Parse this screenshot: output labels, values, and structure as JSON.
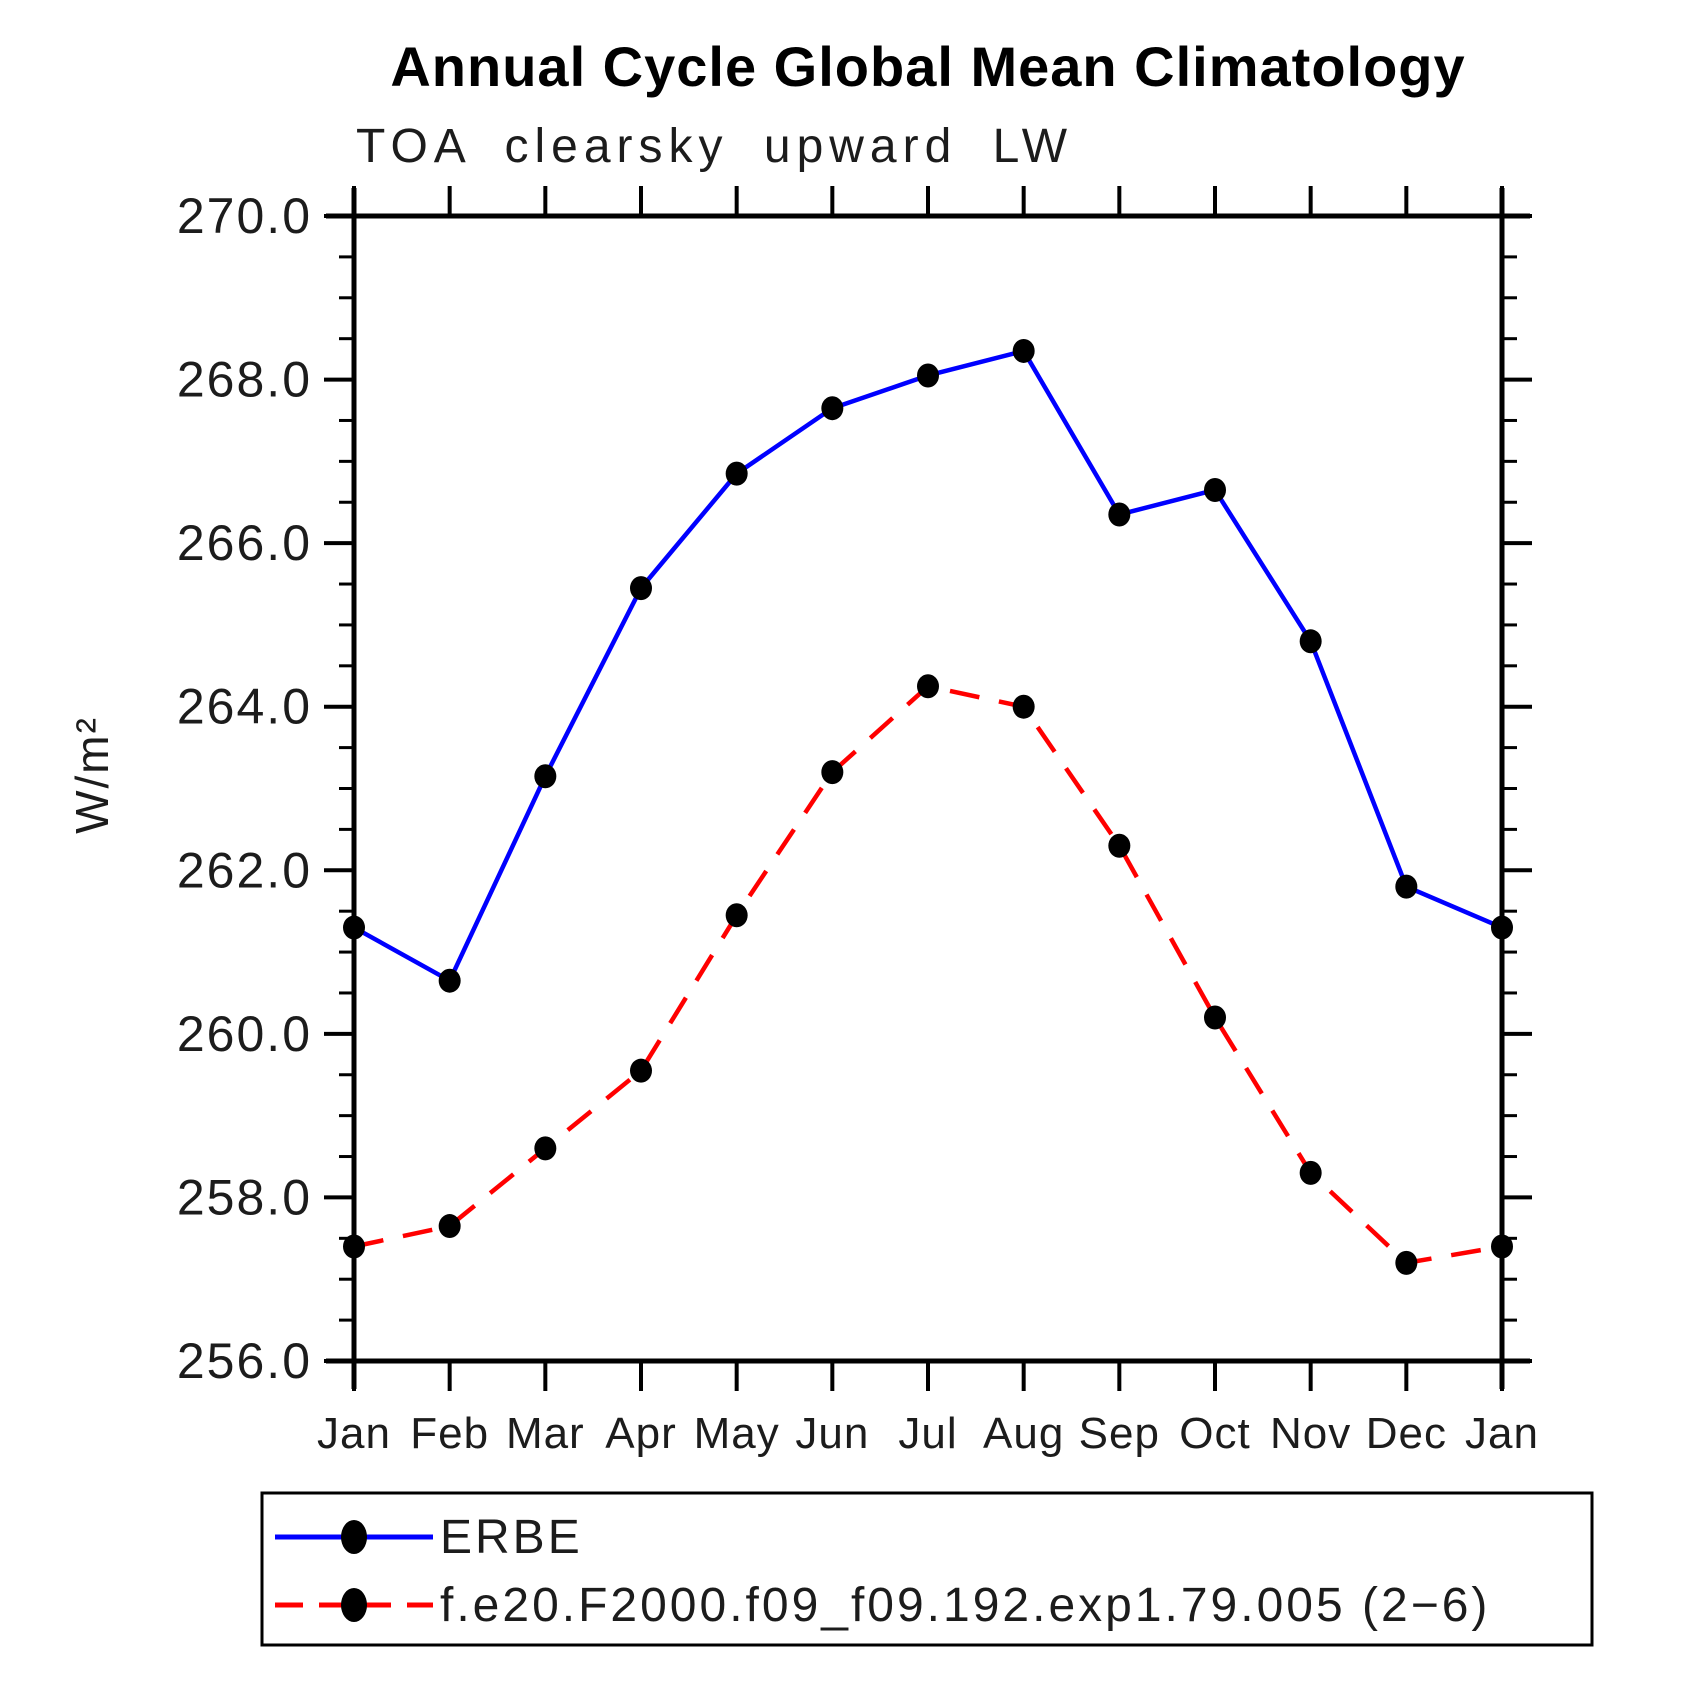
{
  "title": "Annual Cycle Global Mean Climatology",
  "subtitle": "TOA clearsky upward LW",
  "ylabel": "W/m²",
  "colors": {
    "erbe_line": "#0000ff",
    "model_line": "#ff0000",
    "marker": "#000000",
    "axis": "#000000",
    "text": "#1c1c1c",
    "background": "#ffffff"
  },
  "chart_data": {
    "type": "line",
    "title": "Annual Cycle Global Mean Climatology",
    "subtitle": "TOA clearsky upward LW",
    "xlabel": "",
    "ylabel": "W/m²",
    "x_categories": [
      "Jan",
      "Feb",
      "Mar",
      "Apr",
      "May",
      "Jun",
      "Jul",
      "Aug",
      "Sep",
      "Oct",
      "Nov",
      "Dec",
      "Jan"
    ],
    "ylim": [
      256.0,
      270.0
    ],
    "ytick_interval": 2.0,
    "ytick_minor_interval": 0.5,
    "ytick_values": [
      256.0,
      258.0,
      260.0,
      262.0,
      264.0,
      266.0,
      268.0,
      270.0
    ],
    "ytick_labels": [
      "256.0",
      "258.0",
      "260.0",
      "262.0",
      "264.0",
      "266.0",
      "268.0",
      "270.0"
    ],
    "grid": false,
    "legend_position": "bottom",
    "series": [
      {
        "name": "ERBE",
        "color": "#0000ff",
        "line_style": "solid",
        "marker": "filled-circle",
        "marker_color": "#000000",
        "values": [
          261.3,
          260.65,
          263.15,
          265.45,
          266.85,
          267.65,
          268.05,
          268.35,
          266.35,
          266.65,
          264.8,
          261.8,
          261.3
        ]
      },
      {
        "name": "f.e20.F2000.f09_f09.192.exp1.79.005 (2−6)",
        "color": "#ff0000",
        "line_style": "dashed",
        "marker": "filled-circle",
        "marker_color": "#000000",
        "values": [
          257.4,
          257.65,
          258.6,
          259.55,
          261.45,
          263.2,
          264.25,
          264.0,
          262.3,
          260.2,
          258.3,
          257.2,
          257.4
        ]
      }
    ]
  }
}
